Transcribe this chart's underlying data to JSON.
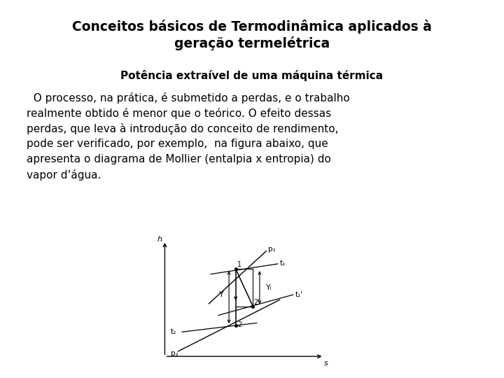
{
  "title_line1": "Conceitos básicos de Termodinâmica aplicados à",
  "title_line2": "geração termelétrica",
  "subtitle": "Potência extraível de uma máquina térmica",
  "body_lines": [
    "  O processo, na prática, é submetido a perdas, e o trabalho",
    "realmente obtido é menor que o teórico. O efeito dessas",
    "perdas, que leva à introdução do conceito de rendimento,",
    "pode ser verificado, por exemplo,  na figura abaixo, que",
    "apresenta o diagrama de Mollier (entalpia x entropia) do",
    "vapor d’água."
  ],
  "bg_color": "#ffffff",
  "text_color": "#000000",
  "title_fontsize": 13.5,
  "subtitle_fontsize": 11,
  "body_fontsize": 11
}
